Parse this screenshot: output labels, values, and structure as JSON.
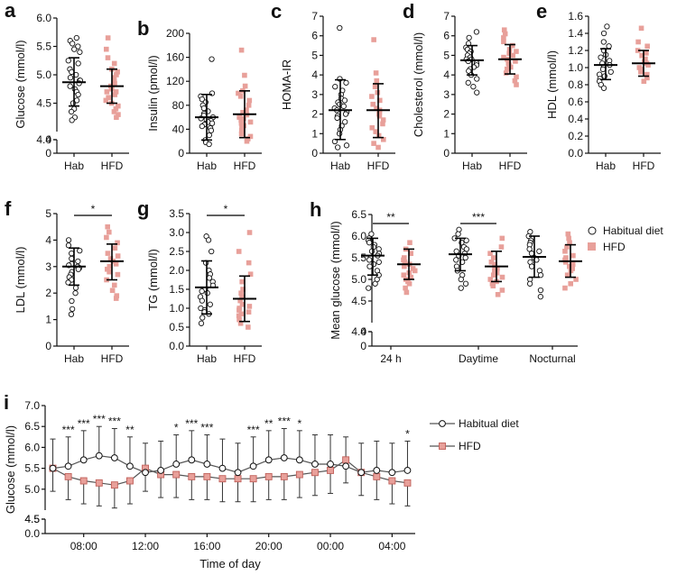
{
  "colors": {
    "hab": "#ffffff",
    "hab_stroke": "#111111",
    "hfd": "#e8a09a",
    "hfd_stroke": "#c0605a",
    "axis": "#111111"
  },
  "chart_data": [
    {
      "id": "a",
      "panel_label": "a",
      "type": "scatter",
      "ylabel": "Glucose (mmol/l)",
      "categories": [
        "Hab",
        "HFD"
      ],
      "ylim": [
        0,
        6.0
      ],
      "break": [
        0.0,
        4.0
      ],
      "yticks_low": [
        "0",
        "4"
      ],
      "yticks": [
        "4.0",
        "4.5",
        "5.0",
        "5.5",
        "6.0"
      ],
      "series": [
        {
          "name": "Hab",
          "mean": 4.87,
          "sd_low": 4.45,
          "sd_high": 5.3,
          "points": [
            5.65,
            5.6,
            5.55,
            5.5,
            5.45,
            5.4,
            5.25,
            5.2,
            5.1,
            5.05,
            5.0,
            4.95,
            4.9,
            4.9,
            4.85,
            4.8,
            4.75,
            4.7,
            4.65,
            4.55,
            4.5,
            4.4,
            4.35,
            4.25,
            4.2
          ]
        },
        {
          "name": "HFD",
          "mean": 4.8,
          "sd_low": 4.5,
          "sd_high": 5.1,
          "points": [
            5.65,
            5.45,
            5.3,
            5.2,
            5.1,
            5.05,
            5.0,
            4.95,
            4.9,
            4.85,
            4.85,
            4.8,
            4.75,
            4.7,
            4.7,
            4.65,
            4.6,
            4.55,
            4.5,
            4.45,
            4.4,
            4.35,
            4.3,
            4.25
          ]
        }
      ]
    },
    {
      "id": "b",
      "panel_label": "b",
      "type": "scatter",
      "ylabel": "Insulin (pmol/l)",
      "categories": [
        "Hab",
        "HFD"
      ],
      "ylim": [
        0,
        200
      ],
      "yticks": [
        "0",
        "40",
        "80",
        "120",
        "160",
        "200"
      ],
      "series": [
        {
          "name": "Hab",
          "mean": 60,
          "sd_low": 22,
          "sd_high": 98,
          "points": [
            157,
            100,
            95,
            90,
            85,
            80,
            75,
            70,
            66,
            63,
            60,
            58,
            56,
            54,
            52,
            50,
            48,
            45,
            42,
            38,
            30,
            22,
            18,
            15
          ]
        },
        {
          "name": "HFD",
          "mean": 65,
          "sd_low": 26,
          "sd_high": 104,
          "points": [
            172,
            130,
            112,
            104,
            100,
            95,
            88,
            80,
            72,
            68,
            64,
            60,
            58,
            55,
            52,
            50,
            46,
            42,
            38,
            32,
            28,
            24,
            20
          ]
        }
      ]
    },
    {
      "id": "c",
      "panel_label": "c",
      "type": "scatter",
      "ylabel": "HOMA-IR",
      "categories": [
        "Hab",
        "HFD"
      ],
      "ylim": [
        0,
        7
      ],
      "yticks": [
        "0",
        "1",
        "2",
        "3",
        "4",
        "5",
        "6",
        "7"
      ],
      "series": [
        {
          "name": "Hab",
          "mean": 2.2,
          "sd_low": 0.7,
          "sd_high": 3.75,
          "points": [
            6.4,
            3.8,
            3.6,
            3.4,
            3.2,
            3.0,
            2.8,
            2.7,
            2.6,
            2.5,
            2.4,
            2.3,
            2.2,
            2.1,
            2.0,
            1.9,
            1.8,
            1.6,
            1.4,
            1.2,
            1.0,
            0.6,
            0.4,
            0.3
          ]
        },
        {
          "name": "HFD",
          "mean": 2.2,
          "sd_low": 0.8,
          "sd_high": 3.55,
          "points": [
            5.8,
            4.1,
            3.7,
            3.4,
            3.1,
            2.9,
            2.7,
            2.5,
            2.3,
            2.2,
            2.1,
            2.0,
            1.9,
            1.7,
            1.5,
            1.3,
            1.1,
            0.9,
            0.7,
            0.5,
            0.3
          ]
        }
      ]
    },
    {
      "id": "d",
      "panel_label": "d",
      "type": "scatter",
      "ylabel": "Cholesterol (mmol/l)",
      "categories": [
        "Hab",
        "HFD"
      ],
      "ylim": [
        0,
        7
      ],
      "yticks": [
        "0",
        "1",
        "2",
        "3",
        "4",
        "5",
        "6",
        "7"
      ],
      "series": [
        {
          "name": "Hab",
          "mean": 4.75,
          "sd_low": 4.0,
          "sd_high": 5.5,
          "points": [
            6.2,
            5.9,
            5.6,
            5.4,
            5.3,
            5.2,
            5.1,
            5.0,
            4.9,
            4.8,
            4.8,
            4.7,
            4.6,
            4.5,
            4.4,
            4.3,
            4.2,
            4.0,
            3.8,
            3.6,
            3.4,
            3.1
          ]
        },
        {
          "name": "HFD",
          "mean": 4.8,
          "sd_low": 4.05,
          "sd_high": 5.55,
          "points": [
            6.3,
            6.1,
            5.9,
            5.7,
            5.5,
            5.3,
            5.2,
            5.1,
            5.0,
            4.9,
            4.8,
            4.7,
            4.6,
            4.5,
            4.4,
            4.3,
            4.1,
            3.9,
            3.7,
            3.5
          ]
        }
      ]
    },
    {
      "id": "e",
      "panel_label": "e",
      "type": "scatter",
      "ylabel": "HDL (mmol/l)",
      "categories": [
        "Hab",
        "HFD"
      ],
      "ylim": [
        0,
        1.6
      ],
      "yticks": [
        "0.0",
        "0.2",
        "0.4",
        "0.6",
        "0.8",
        "1.0",
        "1.2",
        "1.4",
        "1.6"
      ],
      "series": [
        {
          "name": "Hab",
          "mean": 1.03,
          "sd_low": 0.86,
          "sd_high": 1.22,
          "points": [
            1.48,
            1.4,
            1.3,
            1.25,
            1.2,
            1.15,
            1.12,
            1.08,
            1.05,
            1.03,
            1.0,
            0.98,
            0.95,
            0.92,
            0.9,
            0.87,
            0.84,
            0.8,
            0.76
          ]
        },
        {
          "name": "HFD",
          "mean": 1.05,
          "sd_low": 0.9,
          "sd_high": 1.2,
          "points": [
            1.46,
            1.3,
            1.25,
            1.2,
            1.17,
            1.14,
            1.1,
            1.07,
            1.05,
            1.03,
            1.0,
            0.98,
            0.95,
            0.92,
            0.88,
            0.84
          ]
        }
      ]
    },
    {
      "id": "f",
      "panel_label": "f",
      "type": "scatter",
      "ylabel": "LDL (mmol/l)",
      "categories": [
        "Hab",
        "HFD"
      ],
      "ylim": [
        0,
        5
      ],
      "yticks": [
        "0",
        "1",
        "2",
        "3",
        "4",
        "5"
      ],
      "significance": "*",
      "series": [
        {
          "name": "Hab",
          "mean": 3.0,
          "sd_low": 2.3,
          "sd_high": 3.7,
          "points": [
            4.0,
            3.8,
            3.6,
            3.5,
            3.3,
            3.2,
            3.1,
            3.05,
            3.0,
            2.95,
            2.9,
            2.8,
            2.7,
            2.6,
            2.5,
            2.4,
            2.2,
            2.0,
            1.7,
            1.4,
            1.2
          ]
        },
        {
          "name": "HFD",
          "mean": 3.2,
          "sd_low": 2.5,
          "sd_high": 3.85,
          "points": [
            4.5,
            4.3,
            4.1,
            3.9,
            3.7,
            3.5,
            3.4,
            3.3,
            3.2,
            3.1,
            3.0,
            2.9,
            2.8,
            2.7,
            2.5,
            2.3,
            2.1,
            1.9,
            1.8
          ]
        }
      ]
    },
    {
      "id": "g",
      "panel_label": "g",
      "type": "scatter",
      "ylabel": "TG (mmol/l)",
      "categories": [
        "Hab",
        "HFD"
      ],
      "ylim": [
        0,
        3.5
      ],
      "yticks": [
        "0.0",
        "0.5",
        "1.0",
        "1.5",
        "2.0",
        "2.5",
        "3.0",
        "3.5"
      ],
      "significance": "*",
      "series": [
        {
          "name": "Hab",
          "mean": 1.55,
          "sd_low": 0.85,
          "sd_high": 2.25,
          "points": [
            2.9,
            2.8,
            2.5,
            2.2,
            2.0,
            1.9,
            1.8,
            1.7,
            1.6,
            1.5,
            1.45,
            1.4,
            1.3,
            1.2,
            1.1,
            1.0,
            0.95,
            0.9,
            0.85,
            0.75,
            0.6
          ]
        },
        {
          "name": "HFD",
          "mean": 1.25,
          "sd_low": 0.65,
          "sd_high": 1.85,
          "points": [
            3.0,
            2.5,
            2.2,
            1.9,
            1.7,
            1.5,
            1.4,
            1.3,
            1.2,
            1.1,
            1.05,
            1.0,
            0.95,
            0.9,
            0.85,
            0.8,
            0.7,
            0.6,
            0.5
          ]
        }
      ]
    },
    {
      "id": "h",
      "panel_label": "h",
      "type": "scatter",
      "ylabel": "Mean glucose (mmol/l)",
      "categories": [
        "24 h",
        "Daytime",
        "Nocturnal"
      ],
      "ylim": [
        0,
        6.5
      ],
      "break": [
        0.0,
        4.0
      ],
      "yticks_low": [
        "0",
        "4"
      ],
      "yticks": [
        "4.0",
        "4.5",
        "5.0",
        "5.5",
        "6.0",
        "6.5"
      ],
      "significance": [
        "**",
        "***",
        ""
      ],
      "legend": [
        "Habitual diet",
        "HFD"
      ],
      "groups": [
        {
          "category": "24 h",
          "hab": {
            "mean": 5.55,
            "sd_low": 5.1,
            "sd_high": 5.95,
            "points": [
              6.05,
              5.95,
              5.9,
              5.85,
              5.8,
              5.75,
              5.7,
              5.65,
              5.6,
              5.55,
              5.5,
              5.45,
              5.4,
              5.35,
              5.3,
              5.2,
              5.1,
              5.0,
              4.9,
              4.8
            ]
          },
          "hfd": {
            "mean": 5.35,
            "sd_low": 5.0,
            "sd_high": 5.7,
            "points": [
              5.85,
              5.7,
              5.6,
              5.5,
              5.45,
              5.4,
              5.35,
              5.3,
              5.25,
              5.2,
              5.15,
              5.1,
              5.05,
              5.0,
              4.95,
              4.9,
              4.8,
              4.7
            ]
          }
        },
        {
          "category": "Daytime",
          "hab": {
            "mean": 5.58,
            "sd_low": 5.2,
            "sd_high": 5.95,
            "points": [
              6.15,
              6.05,
              5.95,
              5.9,
              5.85,
              5.75,
              5.7,
              5.65,
              5.6,
              5.55,
              5.5,
              5.45,
              5.4,
              5.3,
              5.2,
              5.1,
              5.0,
              4.9,
              4.8
            ]
          },
          "hfd": {
            "mean": 5.3,
            "sd_low": 4.95,
            "sd_high": 5.65,
            "points": [
              5.95,
              5.75,
              5.6,
              5.5,
              5.4,
              5.35,
              5.3,
              5.25,
              5.2,
              5.15,
              5.1,
              5.05,
              5.0,
              4.95,
              4.9,
              4.85,
              4.75,
              4.65
            ]
          }
        },
        {
          "category": "Nocturnal",
          "hab": {
            "mean": 5.52,
            "sd_low": 5.05,
            "sd_high": 6.0,
            "points": [
              6.1,
              6.0,
              5.9,
              5.85,
              5.8,
              5.7,
              5.65,
              5.6,
              5.5,
              5.45,
              5.4,
              5.3,
              5.2,
              5.1,
              5.0,
              4.9,
              4.75,
              4.6
            ]
          },
          "hfd": {
            "mean": 5.42,
            "sd_low": 5.05,
            "sd_high": 5.8,
            "points": [
              6.05,
              5.95,
              5.85,
              5.75,
              5.65,
              5.55,
              5.5,
              5.45,
              5.4,
              5.35,
              5.3,
              5.25,
              5.2,
              5.1,
              5.0,
              4.9,
              4.8
            ]
          }
        }
      ]
    },
    {
      "id": "i",
      "panel_label": "i",
      "type": "line",
      "xlabel": "Time of day",
      "ylabel": "Glucose (mmol/l)",
      "ylim": [
        0,
        7.0
      ],
      "break": [
        0.0,
        4.5
      ],
      "yticks_low": [
        "0.0",
        "4.5"
      ],
      "yticks": [
        "4.5",
        "5.0",
        "5.5",
        "6.0",
        "6.5",
        "7.0"
      ],
      "x_hours": [
        6,
        7,
        8,
        9,
        10,
        11,
        12,
        13,
        14,
        15,
        16,
        17,
        18,
        19,
        20,
        21,
        22,
        23,
        24,
        25,
        26,
        27,
        28,
        29
      ],
      "xticks": [
        "08:00",
        "12:00",
        "16:00",
        "20:00",
        "00:00",
        "04:00"
      ],
      "xtick_hours": [
        8,
        12,
        16,
        20,
        24,
        28
      ],
      "legend": [
        "Habitual diet",
        "HFD"
      ],
      "series": [
        {
          "name": "Habitual diet",
          "values": [
            5.5,
            5.55,
            5.7,
            5.8,
            5.75,
            5.55,
            5.4,
            5.45,
            5.6,
            5.7,
            5.6,
            5.5,
            5.4,
            5.55,
            5.7,
            5.75,
            5.7,
            5.6,
            5.6,
            5.55,
            5.4,
            5.45,
            5.4,
            5.45
          ],
          "sd": 0.7
        },
        {
          "name": "HFD",
          "values": [
            5.5,
            5.3,
            5.2,
            5.15,
            5.1,
            5.2,
            5.5,
            5.35,
            5.35,
            5.3,
            5.3,
            5.25,
            5.25,
            5.25,
            5.3,
            5.3,
            5.35,
            5.4,
            5.45,
            5.7,
            5.4,
            5.3,
            5.2,
            5.15
          ],
          "sd": 0.55
        }
      ],
      "significance": [
        "",
        "***",
        "***",
        "***",
        "***",
        "**",
        "",
        "",
        "*",
        "***",
        "***",
        "",
        "",
        "***",
        "**",
        "***",
        "*",
        "",
        "",
        "",
        "",
        "",
        "",
        "*"
      ]
    }
  ]
}
